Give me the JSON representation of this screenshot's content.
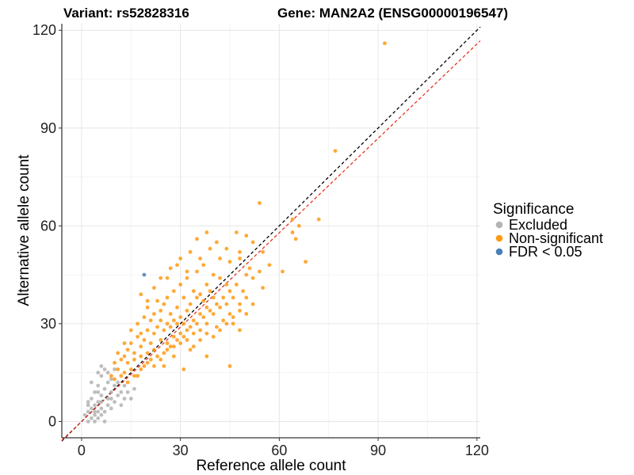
{
  "chart_data": {
    "type": "scatter",
    "title_left": "Variant: rs52828316",
    "title_right": "Gene: MAN2A2 (ENSG00000196547)",
    "xlabel": "Reference allele count",
    "ylabel": "Alternative allele count",
    "xlim": [
      -6,
      121
    ],
    "ylim": [
      -5,
      122
    ],
    "x_ticks": [
      0,
      30,
      60,
      90,
      120
    ],
    "y_ticks": [
      0,
      30,
      60,
      90,
      120
    ],
    "x_tick_labels": [
      "0",
      "30",
      "60",
      "90",
      "120"
    ],
    "y_tick_labels": [
      "0",
      "30",
      "60",
      "90",
      "120"
    ],
    "grid": true,
    "legend": {
      "title": "Significance",
      "position": "right",
      "entries": [
        {
          "label": "Excluded",
          "color": "#b3b3b3"
        },
        {
          "label": "Non-significant",
          "color": "#ff9a14"
        },
        {
          "label": "FDR < 0.05",
          "color": "#4a7eb8"
        }
      ]
    },
    "reference_lines": [
      {
        "name": "identity",
        "slope": 1.0,
        "intercept": 0,
        "color": "#000000",
        "style": "dashed"
      },
      {
        "name": "fit",
        "slope": 0.965,
        "intercept": 0,
        "color": "#e8331c",
        "style": "dashed"
      }
    ],
    "series": [
      {
        "name": "Excluded",
        "color": "#b3b3b3",
        "points": [
          [
            1,
            2
          ],
          [
            2,
            0
          ],
          [
            2,
            3
          ],
          [
            2,
            5
          ],
          [
            3,
            1
          ],
          [
            3,
            4
          ],
          [
            3,
            7
          ],
          [
            4,
            0
          ],
          [
            4,
            2
          ],
          [
            4,
            5
          ],
          [
            4,
            9
          ],
          [
            5,
            1
          ],
          [
            5,
            3
          ],
          [
            5,
            6
          ],
          [
            5,
            11
          ],
          [
            6,
            2
          ],
          [
            6,
            4
          ],
          [
            6,
            8
          ],
          [
            6,
            14
          ],
          [
            7,
            0
          ],
          [
            7,
            3
          ],
          [
            7,
            10
          ],
          [
            7,
            16
          ],
          [
            8,
            5
          ],
          [
            8,
            7
          ],
          [
            8,
            12
          ],
          [
            9,
            4
          ],
          [
            9,
            9
          ],
          [
            9,
            13
          ],
          [
            10,
            6
          ],
          [
            10,
            11
          ],
          [
            11,
            8
          ],
          [
            11,
            12
          ],
          [
            12,
            5
          ],
          [
            12,
            9
          ],
          [
            13,
            7
          ],
          [
            13,
            11
          ],
          [
            14,
            9
          ],
          [
            15,
            7
          ],
          [
            16,
            10
          ],
          [
            3,
            12
          ],
          [
            5,
            15
          ],
          [
            6,
            17
          ],
          [
            8,
            15
          ],
          [
            10,
            16
          ],
          [
            2,
            6
          ],
          [
            4,
            3
          ],
          [
            6,
            6
          ],
          [
            5,
            9
          ],
          [
            9,
            7
          ]
        ]
      },
      {
        "name": "Non-significant",
        "color": "#ff9a14",
        "points": [
          [
            10,
            13
          ],
          [
            11,
            16
          ],
          [
            12,
            14
          ],
          [
            12,
            19
          ],
          [
            13,
            20
          ],
          [
            13,
            15
          ],
          [
            14,
            18
          ],
          [
            14,
            22
          ],
          [
            15,
            16
          ],
          [
            15,
            24
          ],
          [
            16,
            19
          ],
          [
            16,
            21
          ],
          [
            17,
            14
          ],
          [
            17,
            26
          ],
          [
            17,
            30
          ],
          [
            18,
            20
          ],
          [
            18,
            23
          ],
          [
            18,
            27
          ],
          [
            19,
            17
          ],
          [
            19,
            25
          ],
          [
            19,
            32
          ],
          [
            20,
            21
          ],
          [
            20,
            28
          ],
          [
            20,
            35
          ],
          [
            21,
            19
          ],
          [
            21,
            24
          ],
          [
            21,
            31
          ],
          [
            22,
            22
          ],
          [
            22,
            27
          ],
          [
            22,
            33
          ],
          [
            23,
            20
          ],
          [
            23,
            29
          ],
          [
            23,
            37
          ],
          [
            24,
            25
          ],
          [
            24,
            31
          ],
          [
            24,
            34
          ],
          [
            25,
            21
          ],
          [
            25,
            28
          ],
          [
            25,
            36
          ],
          [
            26,
            24
          ],
          [
            26,
            30
          ],
          [
            26,
            38
          ],
          [
            27,
            23
          ],
          [
            27,
            29
          ],
          [
            27,
            33
          ],
          [
            28,
            26
          ],
          [
            28,
            31
          ],
          [
            28,
            40
          ],
          [
            29,
            25
          ],
          [
            29,
            30
          ],
          [
            29,
            35
          ],
          [
            30,
            27
          ],
          [
            30,
            32
          ],
          [
            30,
            42
          ],
          [
            31,
            26
          ],
          [
            31,
            30
          ],
          [
            31,
            38
          ],
          [
            32,
            28
          ],
          [
            32,
            34
          ],
          [
            32,
            44
          ],
          [
            33,
            29
          ],
          [
            33,
            36
          ],
          [
            34,
            31
          ],
          [
            34,
            27
          ],
          [
            34,
            40
          ],
          [
            35,
            30
          ],
          [
            35,
            38
          ],
          [
            35,
            46
          ],
          [
            36,
            28
          ],
          [
            36,
            33
          ],
          [
            36,
            39
          ],
          [
            37,
            32
          ],
          [
            37,
            37
          ],
          [
            37,
            48
          ],
          [
            38,
            30
          ],
          [
            38,
            35
          ],
          [
            38,
            42
          ],
          [
            39,
            34
          ],
          [
            39,
            40
          ],
          [
            40,
            33
          ],
          [
            40,
            38
          ],
          [
            40,
            45
          ],
          [
            41,
            29
          ],
          [
            41,
            36
          ],
          [
            42,
            35
          ],
          [
            42,
            44
          ],
          [
            43,
            31
          ],
          [
            43,
            38
          ],
          [
            44,
            36
          ],
          [
            44,
            42
          ],
          [
            45,
            33
          ],
          [
            45,
            40
          ],
          [
            46,
            38
          ],
          [
            46,
            30
          ],
          [
            47,
            42
          ],
          [
            48,
            36
          ],
          [
            48,
            50
          ],
          [
            49,
            40
          ],
          [
            50,
            45
          ],
          [
            50,
            38
          ],
          [
            51,
            47
          ],
          [
            52,
            44
          ],
          [
            54,
            46
          ],
          [
            55,
            52
          ],
          [
            57,
            48
          ],
          [
            35,
            56
          ],
          [
            38,
            58
          ],
          [
            41,
            55
          ],
          [
            44,
            53
          ],
          [
            47,
            58
          ],
          [
            50,
            57
          ],
          [
            52,
            55
          ],
          [
            54,
            67
          ],
          [
            61,
            46
          ],
          [
            64,
            58
          ],
          [
            64,
            62
          ],
          [
            65,
            56
          ],
          [
            66,
            60
          ],
          [
            68,
            49
          ],
          [
            72,
            62
          ],
          [
            77,
            83
          ],
          [
            92,
            116
          ],
          [
            24,
            44
          ],
          [
            27,
            47
          ],
          [
            30,
            50
          ],
          [
            33,
            52
          ],
          [
            22,
            41
          ],
          [
            18,
            39
          ],
          [
            20,
            37
          ],
          [
            26,
            44
          ],
          [
            29,
            48
          ],
          [
            32,
            46
          ],
          [
            36,
            50
          ],
          [
            39,
            53
          ],
          [
            42,
            50
          ],
          [
            45,
            49
          ],
          [
            48,
            52
          ],
          [
            15,
            28
          ],
          [
            13,
            24
          ],
          [
            11,
            21
          ],
          [
            9,
            14
          ],
          [
            10,
            18
          ],
          [
            14,
            12
          ],
          [
            16,
            14
          ],
          [
            18,
            16
          ],
          [
            20,
            18
          ],
          [
            22,
            17
          ],
          [
            24,
            19
          ],
          [
            26,
            22
          ],
          [
            28,
            23
          ],
          [
            30,
            24
          ],
          [
            32,
            25
          ],
          [
            34,
            23
          ],
          [
            36,
            25
          ],
          [
            38,
            27
          ],
          [
            40,
            26
          ],
          [
            42,
            28
          ],
          [
            44,
            30
          ],
          [
            46,
            32
          ],
          [
            48,
            34
          ],
          [
            50,
            33
          ],
          [
            33,
            22
          ],
          [
            28,
            20
          ],
          [
            25,
            17
          ],
          [
            31,
            16
          ],
          [
            38,
            20
          ],
          [
            45,
            17
          ],
          [
            48,
            28
          ],
          [
            52,
            36
          ],
          [
            55,
            41
          ]
        ]
      },
      {
        "name": "FDR < 0.05",
        "color": "#4a7eb8",
        "points": [
          [
            19,
            45
          ]
        ]
      }
    ]
  }
}
